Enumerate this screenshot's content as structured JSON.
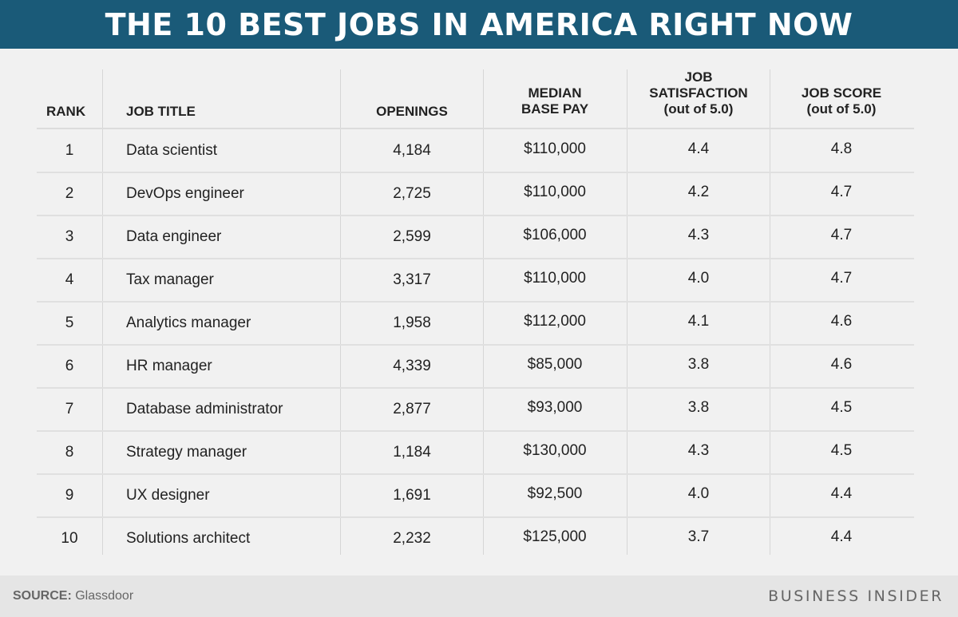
{
  "title": "THE 10 BEST JOBS IN AMERICA RIGHT NOW",
  "headers": {
    "rank": "RANK",
    "job_title": "JOB TITLE",
    "openings": "OPENINGS",
    "median_base_pay": [
      "MEDIAN",
      "BASE PAY"
    ],
    "job_satisfaction": [
      "JOB",
      "SATISFACTION",
      "(out of 5.0)"
    ],
    "job_score": [
      "JOB SCORE",
      "(out of 5.0)"
    ]
  },
  "rows": [
    {
      "rank": "1",
      "job_title": "Data scientist",
      "openings": "4,184",
      "pay": "$110,000",
      "satisfaction": "4.4",
      "score": "4.8"
    },
    {
      "rank": "2",
      "job_title": "DevOps engineer",
      "openings": "2,725",
      "pay": "$110,000",
      "satisfaction": "4.2",
      "score": "4.7"
    },
    {
      "rank": "3",
      "job_title": "Data engineer",
      "openings": "2,599",
      "pay": "$106,000",
      "satisfaction": "4.3",
      "score": "4.7"
    },
    {
      "rank": "4",
      "job_title": "Tax manager",
      "openings": "3,317",
      "pay": "$110,000",
      "satisfaction": "4.0",
      "score": "4.7"
    },
    {
      "rank": "5",
      "job_title": "Analytics manager",
      "openings": "1,958",
      "pay": "$112,000",
      "satisfaction": "4.1",
      "score": "4.6"
    },
    {
      "rank": "6",
      "job_title": "HR manager",
      "openings": "4,339",
      "pay": "$85,000",
      "satisfaction": "3.8",
      "score": "4.6"
    },
    {
      "rank": "7",
      "job_title": "Database administrator",
      "openings": "2,877",
      "pay": "$93,000",
      "satisfaction": "3.8",
      "score": "4.5"
    },
    {
      "rank": "8",
      "job_title": "Strategy manager",
      "openings": "1,184",
      "pay": "$130,000",
      "satisfaction": "4.3",
      "score": "4.5"
    },
    {
      "rank": "9",
      "job_title": "UX designer",
      "openings": "1,691",
      "pay": "$92,500",
      "satisfaction": "4.0",
      "score": "4.4"
    },
    {
      "rank": "10",
      "job_title": "Solutions architect",
      "openings": "2,232",
      "pay": "$125,000",
      "satisfaction": "3.7",
      "score": "4.4"
    }
  ],
  "footer": {
    "source_label": "SOURCE:",
    "source_value": "Glassdoor",
    "brand": "BUSINESS INSIDER"
  },
  "colors": {
    "banner": "#1a5a78",
    "background": "#f1f1f1",
    "footer": "#e5e5e5"
  }
}
